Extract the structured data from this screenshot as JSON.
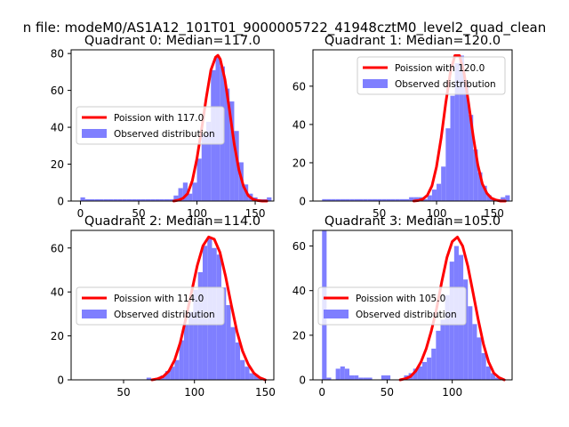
{
  "figure_title": "n file: modeM0/AS1A12_101T01_9000005722_41948cztM0_level2_quad_clean",
  "colors": {
    "hist": "#7f7fff",
    "poisson": "#ff0000",
    "axis": "#000000"
  },
  "chart_data": [
    {
      "type": "bar",
      "title": "Quadrant 0: Median=117.0",
      "median": 117.0,
      "xlim": [
        -8,
        166
      ],
      "ylim": [
        0,
        82
      ],
      "xticks": [
        0,
        50,
        100,
        150
      ],
      "yticks": [
        0,
        20,
        40,
        60,
        80
      ],
      "bin_width": 4,
      "hist_x": [
        0,
        4,
        8,
        12,
        16,
        20,
        24,
        28,
        32,
        36,
        40,
        44,
        48,
        52,
        56,
        60,
        64,
        68,
        72,
        76,
        80,
        84,
        88,
        92,
        96,
        100,
        104,
        108,
        112,
        116,
        120,
        124,
        128,
        132,
        136,
        140,
        144,
        148,
        152,
        156,
        160
      ],
      "hist_y": [
        2,
        1,
        1,
        1,
        1,
        1,
        1,
        1,
        1,
        1,
        1,
        1,
        1,
        1,
        1,
        1,
        1,
        1,
        1,
        1,
        3,
        7,
        10,
        4,
        10,
        23,
        36,
        43,
        71,
        78,
        73,
        61,
        54,
        38,
        21,
        9,
        4,
        2,
        1,
        1,
        2
      ],
      "curve_x": [
        80,
        84,
        88,
        92,
        96,
        100,
        104,
        108,
        112,
        116,
        118,
        120,
        124,
        128,
        132,
        136,
        140,
        144,
        148,
        152,
        156,
        160
      ],
      "curve_y": [
        0,
        0.5,
        1.5,
        4,
        11,
        23,
        39,
        56,
        71,
        78,
        79,
        77,
        66,
        49,
        31,
        17,
        8,
        3,
        1,
        0.3,
        0,
        0
      ],
      "legend": {
        "line": "Poission with 117.0",
        "bar": "Observed distribution",
        "placement": "center-left"
      }
    },
    {
      "type": "bar",
      "title": "Quadrant 1: Median=120.0",
      "median": 120.0,
      "xlim": [
        -8,
        166
      ],
      "ylim": [
        0,
        79
      ],
      "xticks": [
        50,
        100,
        150
      ],
      "yticks": [
        0,
        20,
        40,
        60
      ],
      "bin_width": 4,
      "hist_x": [
        0,
        4,
        8,
        12,
        16,
        20,
        24,
        28,
        32,
        36,
        40,
        44,
        48,
        52,
        56,
        60,
        64,
        68,
        72,
        76,
        80,
        84,
        88,
        92,
        96,
        100,
        104,
        108,
        112,
        116,
        120,
        124,
        128,
        132,
        136,
        140,
        144,
        148,
        152,
        156,
        160
      ],
      "hist_y": [
        1,
        1,
        1,
        1,
        1,
        1,
        1,
        1,
        1,
        1,
        1,
        1,
        1,
        1,
        1,
        1,
        1,
        1,
        1,
        2,
        2,
        2,
        1,
        3,
        6,
        9,
        18,
        38,
        55,
        72,
        76,
        62,
        45,
        27,
        15,
        8,
        3,
        1,
        1,
        2,
        3
      ],
      "curve_x": [
        80,
        84,
        88,
        92,
        96,
        100,
        104,
        108,
        112,
        116,
        120,
        124,
        128,
        132,
        136,
        140,
        144,
        148,
        152,
        156,
        160
      ],
      "curve_y": [
        0,
        0.3,
        1,
        3,
        8,
        18,
        33,
        51,
        67,
        76,
        76,
        67,
        51,
        34,
        19,
        9,
        4,
        1.5,
        0.5,
        0,
        0
      ],
      "legend": {
        "line": "Poission with 120.0",
        "bar": "Observed distribution",
        "placement": "upper-right"
      }
    },
    {
      "type": "bar",
      "title": "Quadrant 2: Median=114.0",
      "median": 114.0,
      "xlim": [
        13,
        156
      ],
      "ylim": [
        0,
        68
      ],
      "xticks": [
        50,
        100,
        150
      ],
      "yticks": [
        0,
        20,
        40,
        60
      ],
      "bin_width": 3.3,
      "hist_x": [
        20,
        23.3,
        26.6,
        29.9,
        33.2,
        36.5,
        39.8,
        43.1,
        46.4,
        49.7,
        53,
        56.3,
        59.6,
        62.9,
        66.2,
        69.5,
        72.8,
        76.1,
        79.4,
        82.7,
        86,
        89.3,
        92.6,
        95.9,
        99.2,
        102.5,
        105.8,
        109.1,
        112.4,
        115.7,
        119,
        122.3,
        125.6,
        128.9,
        132.2,
        135.5,
        138.8,
        142.1,
        145.4,
        148.7
      ],
      "hist_y": [
        0,
        0,
        0,
        0,
        0,
        0,
        0,
        0,
        0,
        0,
        0,
        0,
        0,
        0,
        1,
        0,
        1,
        2,
        4,
        6,
        9,
        18,
        25,
        31,
        41,
        49,
        61,
        65,
        60,
        57,
        42,
        34,
        24,
        17,
        9,
        6,
        3,
        2,
        1,
        0
      ],
      "curve_x": [
        70,
        74,
        78,
        82,
        86,
        90,
        94,
        98,
        102,
        106,
        110,
        114,
        118,
        122,
        126,
        130,
        134,
        138,
        142,
        146,
        150
      ],
      "curve_y": [
        0,
        0.5,
        1.5,
        4,
        9,
        17,
        28,
        40,
        52,
        61,
        65,
        64,
        58,
        47,
        34,
        22,
        13,
        7,
        3,
        1,
        0
      ],
      "legend": {
        "line": "Poission with 114.0",
        "bar": "Observed distribution",
        "placement": "center-left"
      }
    },
    {
      "type": "bar",
      "title": "Quadrant 3: Median=105.0",
      "median": 105.0,
      "xlim": [
        -7,
        146
      ],
      "ylim": [
        0,
        67
      ],
      "xticks": [
        0,
        50,
        100
      ],
      "yticks": [
        0,
        20,
        40,
        60
      ],
      "bin_width": 3.5,
      "hist_x": [
        0,
        3.5,
        7,
        10.5,
        14,
        17.5,
        21,
        24.5,
        28,
        31.5,
        35,
        38.5,
        42,
        45.5,
        49,
        52.5,
        56,
        59.5,
        63,
        66.5,
        70,
        73.5,
        77,
        80.5,
        84,
        87.5,
        91,
        94.5,
        98,
        101.5,
        105,
        108.5,
        112,
        115.5,
        119,
        122.5,
        126,
        129.5,
        133,
        136.5
      ],
      "hist_y": [
        67,
        1,
        0,
        5,
        6,
        5,
        2,
        2,
        1,
        1,
        1,
        0,
        0,
        2,
        2,
        0,
        0,
        0,
        2,
        3,
        5,
        6,
        8,
        10,
        14,
        22,
        27,
        38,
        53,
        60,
        56,
        45,
        33,
        25,
        19,
        12,
        6,
        3,
        1,
        0
      ],
      "curve_x": [
        60,
        64,
        68,
        72,
        76,
        80,
        84,
        88,
        92,
        96,
        100,
        104,
        108,
        112,
        116,
        120,
        124,
        128,
        132,
        136,
        140
      ],
      "curve_y": [
        0,
        0.5,
        1.5,
        4,
        8,
        14,
        22,
        32,
        44,
        55,
        62,
        64,
        60,
        51,
        39,
        27,
        16,
        8,
        3,
        1,
        0
      ],
      "legend": {
        "line": "Poission with 105.0",
        "bar": "Observed distribution",
        "placement": "center-left"
      }
    }
  ]
}
